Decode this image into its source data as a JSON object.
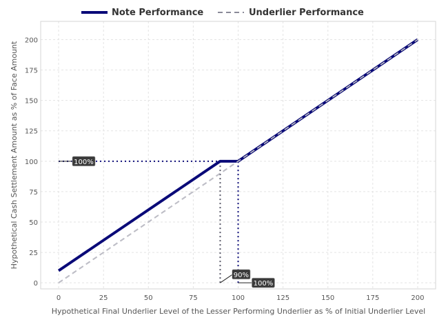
{
  "chart_data": {
    "type": "line",
    "title": "",
    "xlabel": "Hypothetical Final Underlier Level of the Lesser Performing Underlier as % of Initial Underlier Level",
    "ylabel": "Hypothetical Cash Settlement Amount as % of Face Amount",
    "xlim": [
      -10,
      210
    ],
    "ylim": [
      -5,
      215
    ],
    "xticks": [
      0,
      25,
      50,
      75,
      100,
      125,
      150,
      175,
      200
    ],
    "yticks": [
      0,
      25,
      50,
      75,
      100,
      125,
      150,
      175,
      200
    ],
    "grid": true,
    "legend_position": "top-center",
    "series": [
      {
        "name": "Note Performance",
        "color": "#0a0a78",
        "style": "solid",
        "x": [
          0,
          90,
          100,
          200
        ],
        "y": [
          10,
          100,
          100,
          200
        ]
      },
      {
        "name": "Underlier Performance",
        "color": "#8a8a98",
        "style": "dashed",
        "x": [
          0,
          200
        ],
        "y": [
          0,
          200
        ]
      }
    ],
    "annotations": [
      {
        "text": "100%",
        "x": 0,
        "y": 100,
        "label_x": 8,
        "label_y": 100
      },
      {
        "text": "90%",
        "x": 90,
        "y": 0,
        "label_x": 97,
        "label_y": 7
      },
      {
        "text": "100%",
        "x": 100,
        "y": 0,
        "label_x": 108,
        "label_y": 0
      }
    ],
    "reference_lines": [
      {
        "kind": "horizontal",
        "y": 100,
        "from_x": 0,
        "to_x": 90,
        "color": "#0a0a78",
        "style": "dotted"
      },
      {
        "kind": "vertical",
        "x": 90,
        "from_y": 0,
        "to_y": 100,
        "color": "#555566",
        "style": "dotted"
      },
      {
        "kind": "vertical",
        "x": 100,
        "from_y": 0,
        "to_y": 100,
        "color": "#0a0a78",
        "style": "dotted"
      }
    ]
  }
}
